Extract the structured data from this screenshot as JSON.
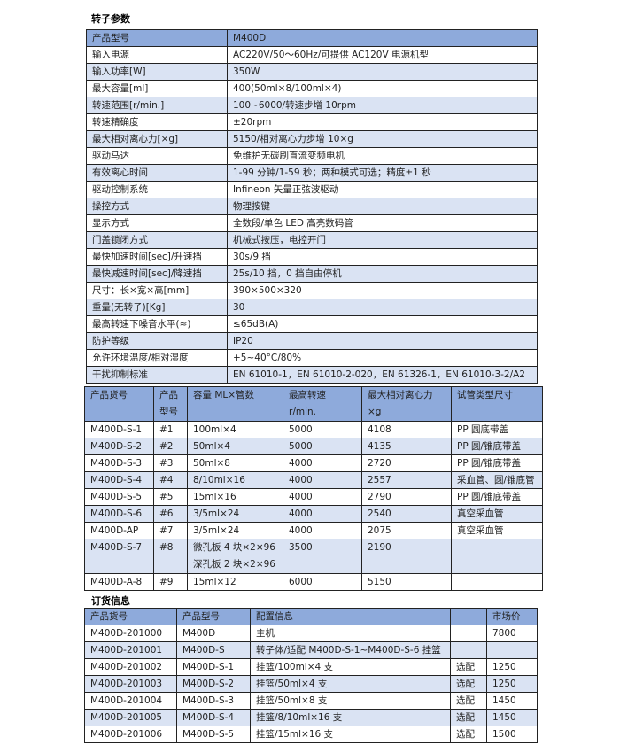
{
  "rotor_section": {
    "title": "转子参数",
    "rows": [
      [
        "产品型号",
        "M400D"
      ],
      [
        "输入电源",
        "AC220V/50～60Hz/可提供 AC120V 电源机型"
      ],
      [
        "输入功率[W]",
        "350W"
      ],
      [
        "最大容量[ml]",
        "400(50ml×8/100ml×4)"
      ],
      [
        "转速范围[r/min.]",
        "100~6000/转速步增 10rpm"
      ],
      [
        "转速精确度",
        "±20rpm"
      ],
      [
        "最大相对离心力[×g]",
        "5150/相对离心力步增 10×g"
      ],
      [
        "驱动马达",
        "免维护无碳刷直流变频电机"
      ],
      [
        "有效离心时间",
        "1-99 分钟/1-59 秒；两种模式可选；精度±1 秒"
      ],
      [
        "驱动控制系统",
        "Infineon 矢量正弦波驱动"
      ],
      [
        "操控方式",
        "物理按键"
      ],
      [
        "显示方式",
        "全数段/单色 LED 高亮数码管"
      ],
      [
        "门盖锁闭方式",
        "机械式按压，电控开门"
      ],
      [
        "最快加速时间[sec]/升速挡",
        "30s/9 挡"
      ],
      [
        "最快减速时间[sec]/降速挡",
        "25s/10 挡，0 挡自由停机"
      ],
      [
        "尺寸：长×宽×高[mm]",
        "390×500×320"
      ],
      [
        "重量(无转子)[Kg]",
        "30"
      ],
      [
        "最高转速下噪音水平(≈)",
        "≤65dB(A)"
      ],
      [
        "防护等级",
        "IP20"
      ],
      [
        "允许环境温度/相对湿度",
        "+5~40°C/80%"
      ],
      [
        "干扰抑制标准",
        "EN 61010-1，EN 61010-2-020，EN 61326-1，EN 61010-3-2/A2"
      ]
    ]
  },
  "rotor_table": {
    "headers": [
      "产品货号",
      "产品型号",
      "容量 ML×管数",
      "最高转速 r/min.",
      "最大相对离心力×g",
      "试管类型尺寸"
    ],
    "rows": [
      [
        "M400D-S-1",
        "#1",
        "100ml×4",
        "5000",
        "4108",
        "PP 圆底带盖"
      ],
      [
        "M400D-S-2",
        "#2",
        "50ml×4",
        "5000",
        "4135",
        "PP 圆/锥底带盖"
      ],
      [
        "M400D-S-3",
        "#3",
        "50ml×8",
        "4000",
        "2720",
        "PP 圆/锥底带盖"
      ],
      [
        "M400D-S-4",
        "#4",
        "8/10ml×16",
        "4000",
        "2557",
        "采血管、圆/锥底管"
      ],
      [
        "M400D-S-5",
        "#5",
        "15ml×16",
        "4000",
        "2790",
        "PP 圆/锥底带盖"
      ],
      [
        "M400D-S-6",
        "#6",
        "3/5ml×24",
        "4000",
        "2540",
        "真空采血管"
      ],
      [
        "M400D-AP",
        "#7",
        "3/5ml×24",
        "4000",
        "2075",
        "真空采血管"
      ],
      [
        "M400D-S-7",
        "#8",
        "微孔板 4 块×2×96 深孔板 2 块×2×96",
        "3500",
        "2190",
        ""
      ],
      [
        "M400D-A-8",
        "#9",
        "15ml×12",
        "6000",
        "5150",
        ""
      ]
    ]
  },
  "order_section": {
    "title": "订货信息",
    "headers": [
      "产品货号",
      "产品型号",
      "配置信息",
      "",
      "市场价"
    ],
    "rows": [
      [
        "M400D-201000",
        "M400D",
        "主机",
        "",
        "7800"
      ],
      [
        "M400D-201001",
        "M400D-S",
        "转子体/适配 M400D-S-1~M400D-S-6 挂篮",
        "",
        ""
      ],
      [
        "M400D-201002",
        "M400D-S-1",
        "挂篮/100ml×4 支",
        "选配",
        "1250"
      ],
      [
        "M400D-201003",
        "M400D-S-2",
        "挂篮/50ml×4 支",
        "选配",
        "1250"
      ],
      [
        "M400D-201004",
        "M400D-S-3",
        "挂篮/50ml×8 支",
        "选配",
        "1450"
      ],
      [
        "M400D-201005",
        "M400D-S-4",
        "挂篮/8/10ml×16 支",
        "选配",
        "1450"
      ],
      [
        "M400D-201006",
        "M400D-S-5",
        "挂篮/15ml×16 支",
        "选配",
        "1500"
      ]
    ]
  },
  "colors": {
    "header": "#8eaadb",
    "alt_row": "#dae3f3"
  }
}
